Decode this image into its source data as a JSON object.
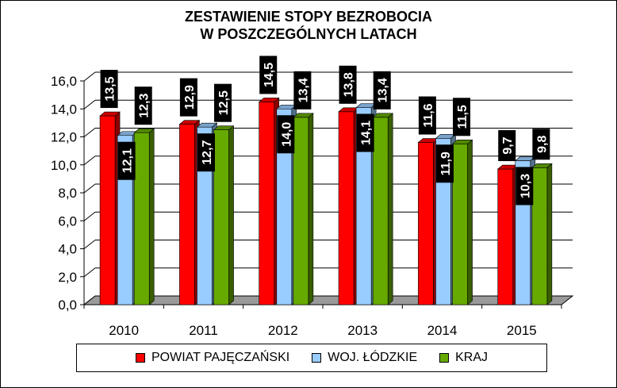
{
  "chart_data": {
    "type": "bar",
    "title": [
      "ZESTAWIENIE STOPY BEZROBOCIA",
      "W POSZCZEGÓLNYCH LATACH"
    ],
    "categories": [
      "2010",
      "2011",
      "2012",
      "2013",
      "2014",
      "2015"
    ],
    "series": [
      {
        "name": "POWIAT PAJĘCZAŃSKI",
        "values": [
          13.5,
          12.9,
          14.5,
          13.8,
          11.6,
          9.7
        ],
        "labels": [
          "13,5",
          "12,9",
          "14,5",
          "13,8",
          "11,6",
          "9,7"
        ],
        "color": "#ff0000"
      },
      {
        "name": "WOJ. ŁÓDZKIE",
        "values": [
          12.1,
          12.7,
          14.0,
          14.1,
          11.9,
          10.3
        ],
        "labels": [
          "12,1",
          "12,7",
          "14,0",
          "14,1",
          "11,9",
          "10,3"
        ],
        "color": "#99ccff"
      },
      {
        "name": "KRAJ",
        "values": [
          12.3,
          12.5,
          13.4,
          13.4,
          11.5,
          9.8
        ],
        "labels": [
          "12,3",
          "12,5",
          "13,4",
          "13,4",
          "11,5",
          "9,8"
        ],
        "color": "#66aa00"
      }
    ],
    "y_ticks": [
      "0,0",
      "2,0",
      "4,0",
      "6,0",
      "8,0",
      "10,0",
      "12,0",
      "14,0",
      "16,0"
    ],
    "ylim": [
      0,
      16
    ],
    "grid": true,
    "legend_position": "bottom"
  }
}
